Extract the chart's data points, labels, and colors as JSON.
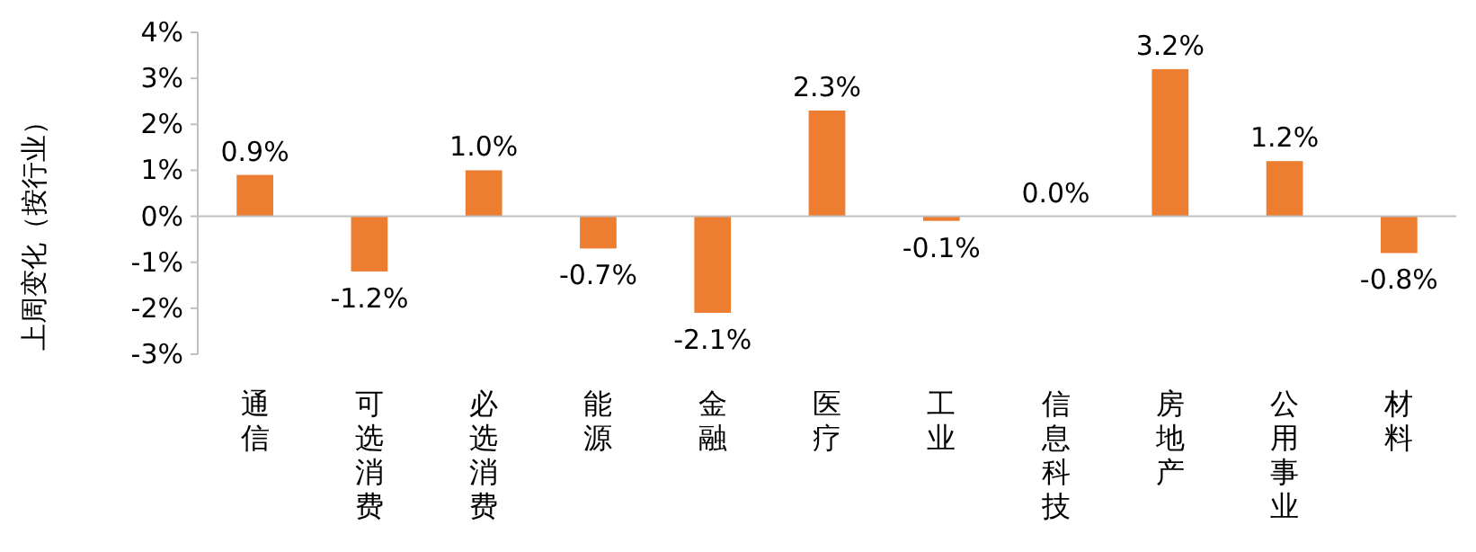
{
  "chart_data": {
    "type": "bar",
    "ylabel": "上周变化（按行业）",
    "categories": [
      "通信",
      "可选消费",
      "必选消费",
      "能源",
      "金融",
      "医疗",
      "工业",
      "信息科技",
      "房地产",
      "公用事业",
      "材料"
    ],
    "values": [
      0.9,
      -1.2,
      1.0,
      -0.7,
      -2.1,
      2.3,
      -0.1,
      0.0,
      3.2,
      1.2,
      -0.8
    ],
    "value_labels": [
      "0.9%",
      "-1.2%",
      "1.0%",
      "-0.7%",
      "-2.1%",
      "2.3%",
      "-0.1%",
      "0.0%",
      "3.2%",
      "1.2%",
      "-0.8%"
    ],
    "color": "#ed7d31",
    "ylim": [
      -3,
      4
    ],
    "yticks": [
      {
        "value": -3,
        "label": "-3%"
      },
      {
        "value": -2,
        "label": "-2%"
      },
      {
        "value": -1,
        "label": "-1%"
      },
      {
        "value": 0,
        "label": "0%"
      },
      {
        "value": 1,
        "label": "1%"
      },
      {
        "value": 2,
        "label": "2%"
      },
      {
        "value": 3,
        "label": "3%"
      },
      {
        "value": 4,
        "label": "4%"
      }
    ]
  }
}
